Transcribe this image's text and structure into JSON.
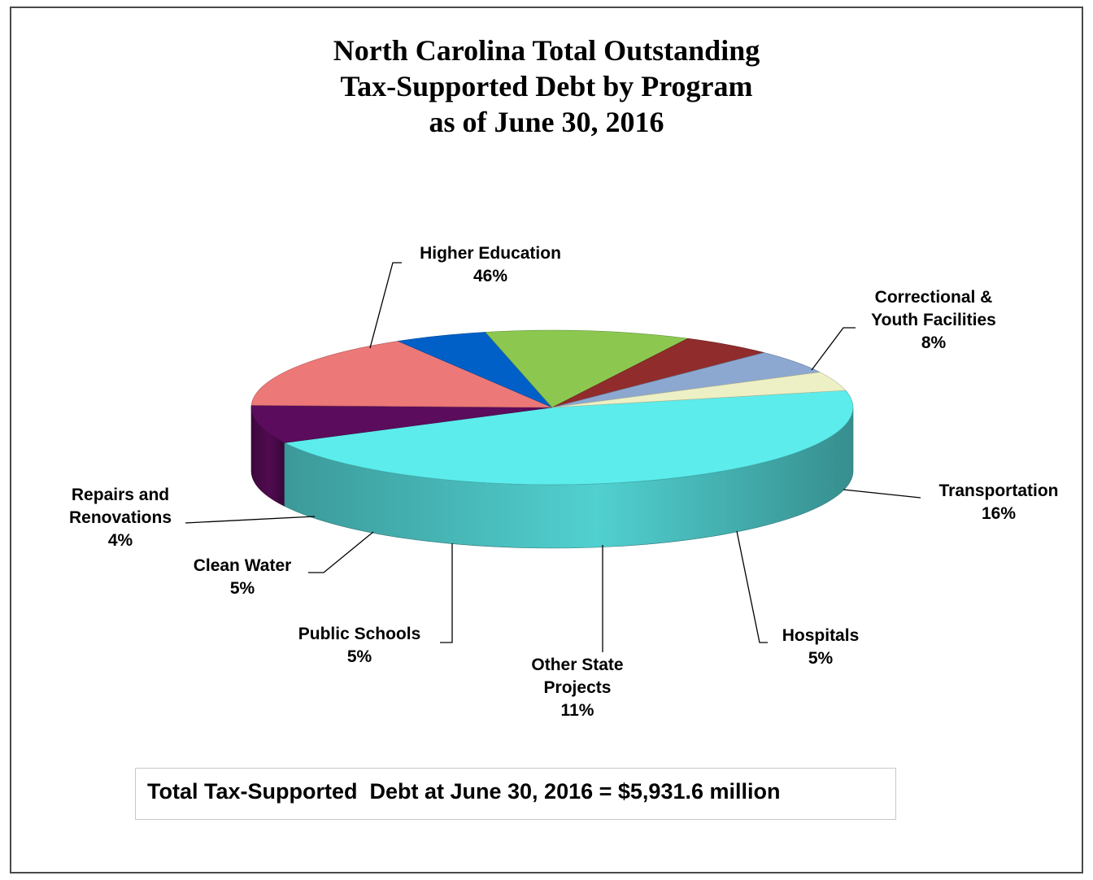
{
  "chart_data": {
    "type": "pie",
    "title": [
      "North Carolina Total Outstanding",
      "Tax-Supported Debt by Program",
      "as of June 30, 2016"
    ],
    "slices": [
      {
        "name": [
          "Higher Education"
        ],
        "pct_label": "46%",
        "value": 46,
        "color": "#5cecec"
      },
      {
        "name": [
          "Correctional &",
          "Youth Facilities"
        ],
        "pct_label": "8%",
        "value": 8,
        "color": "#5c0c5c"
      },
      {
        "name": [
          "Transportation"
        ],
        "pct_label": "16%",
        "value": 16,
        "color": "#ec7878"
      },
      {
        "name": [
          "Hospitals"
        ],
        "pct_label": "5%",
        "value": 5,
        "color": "#0060c8"
      },
      {
        "name": [
          "Other State",
          "Projects"
        ],
        "pct_label": "11%",
        "value": 11,
        "color": "#8cc850"
      },
      {
        "name": [
          "Public Schools"
        ],
        "pct_label": "5%",
        "value": 5,
        "color": "#902c2c"
      },
      {
        "name": [
          "Clean Water"
        ],
        "pct_label": "5%",
        "value": 5,
        "color": "#8ca8d0"
      },
      {
        "name": [
          "Repairs and",
          "Renovations"
        ],
        "pct_label": "4%",
        "value": 4,
        "color": "#ecf0c4"
      }
    ],
    "legend": "none",
    "style": "3d"
  },
  "footer": {
    "total_text": "Total Tax-Supported  Debt at June 30, 2016 = $5,931.6 million"
  }
}
